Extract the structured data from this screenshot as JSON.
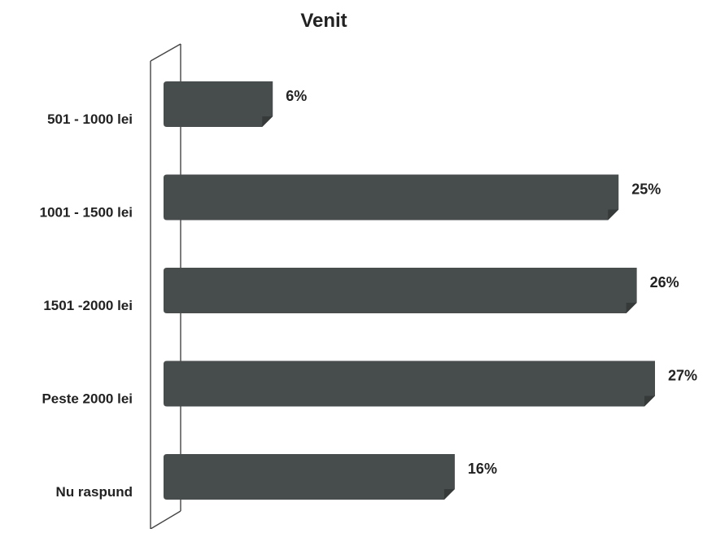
{
  "chart_data": {
    "type": "bar",
    "orientation": "horizontal",
    "title": "Venit",
    "xlabel": "",
    "ylabel": "",
    "categories": [
      "501 - 1000 lei",
      "1001 - 1500 lei",
      "1501 -2000 lei",
      "Peste 2000 lei",
      "Nu raspund"
    ],
    "values": [
      6,
      25,
      26,
      27,
      16
    ],
    "data_labels": [
      "6%",
      "25%",
      "26%",
      "27%",
      "16%"
    ],
    "value_unit": "%",
    "xlim": [
      0,
      27
    ],
    "grid": false,
    "legend": "none",
    "style_3d": true
  },
  "colors": {
    "bar": "#474d4c",
    "bar_side": "#363b3a",
    "wall_line": "#444444",
    "text": "#222222"
  }
}
